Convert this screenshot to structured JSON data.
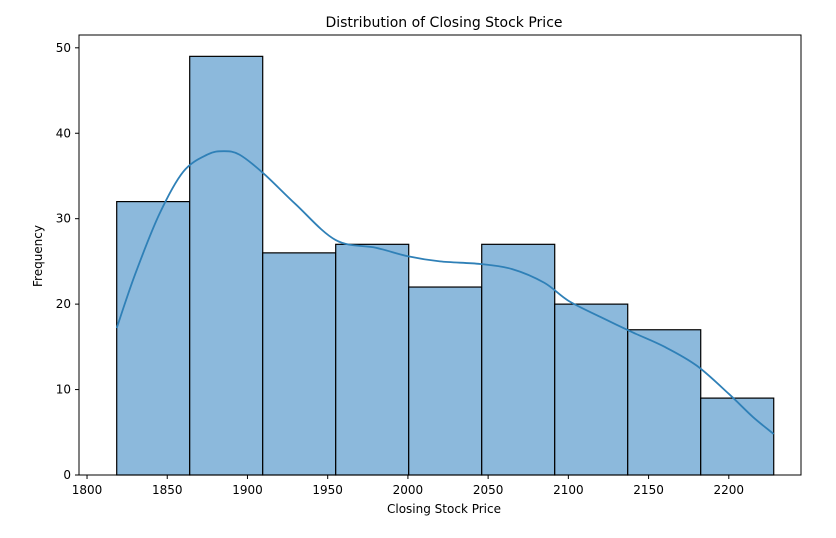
{
  "chart_data": {
    "type": "bar",
    "title": "Distribution of Closing Stock Price",
    "xlabel": "Closing Stock Price",
    "ylabel": "Frequency",
    "xlim": [
      1795,
      2245
    ],
    "ylim": [
      0,
      51.5
    ],
    "xticks": [
      1800,
      1850,
      1900,
      1950,
      2000,
      2050,
      2100,
      2150,
      2200
    ],
    "yticks": [
      0,
      10,
      20,
      30,
      40,
      50
    ],
    "grid": false,
    "legend": "none",
    "bin_edges": [
      1818.5,
      1864.0,
      1909.5,
      1955.0,
      2000.5,
      2046.0,
      2091.5,
      2137.0,
      2182.5,
      2228.0
    ],
    "values": [
      32,
      49,
      26,
      27,
      22,
      27,
      20,
      17,
      9
    ],
    "kde": {
      "x": [
        1818.5,
        1830,
        1845,
        1860,
        1875,
        1885,
        1895,
        1910,
        1930,
        1955,
        1980,
        2000,
        2020,
        2045,
        2065,
        2085,
        2100,
        2120,
        2140,
        2160,
        2180,
        2200,
        2215,
        2228
      ],
      "y": [
        17.2,
        23.5,
        30.5,
        35.5,
        37.5,
        37.9,
        37.5,
        35.3,
        31.7,
        27.5,
        26.6,
        25.6,
        25.0,
        24.7,
        24.1,
        22.5,
        20.4,
        18.5,
        16.7,
        15.0,
        12.8,
        9.5,
        6.8,
        4.8
      ]
    },
    "colors": {
      "bar_fill": "#8cb9dc",
      "bar_edge": "#000000",
      "kde_line": "#2f80b7"
    }
  }
}
